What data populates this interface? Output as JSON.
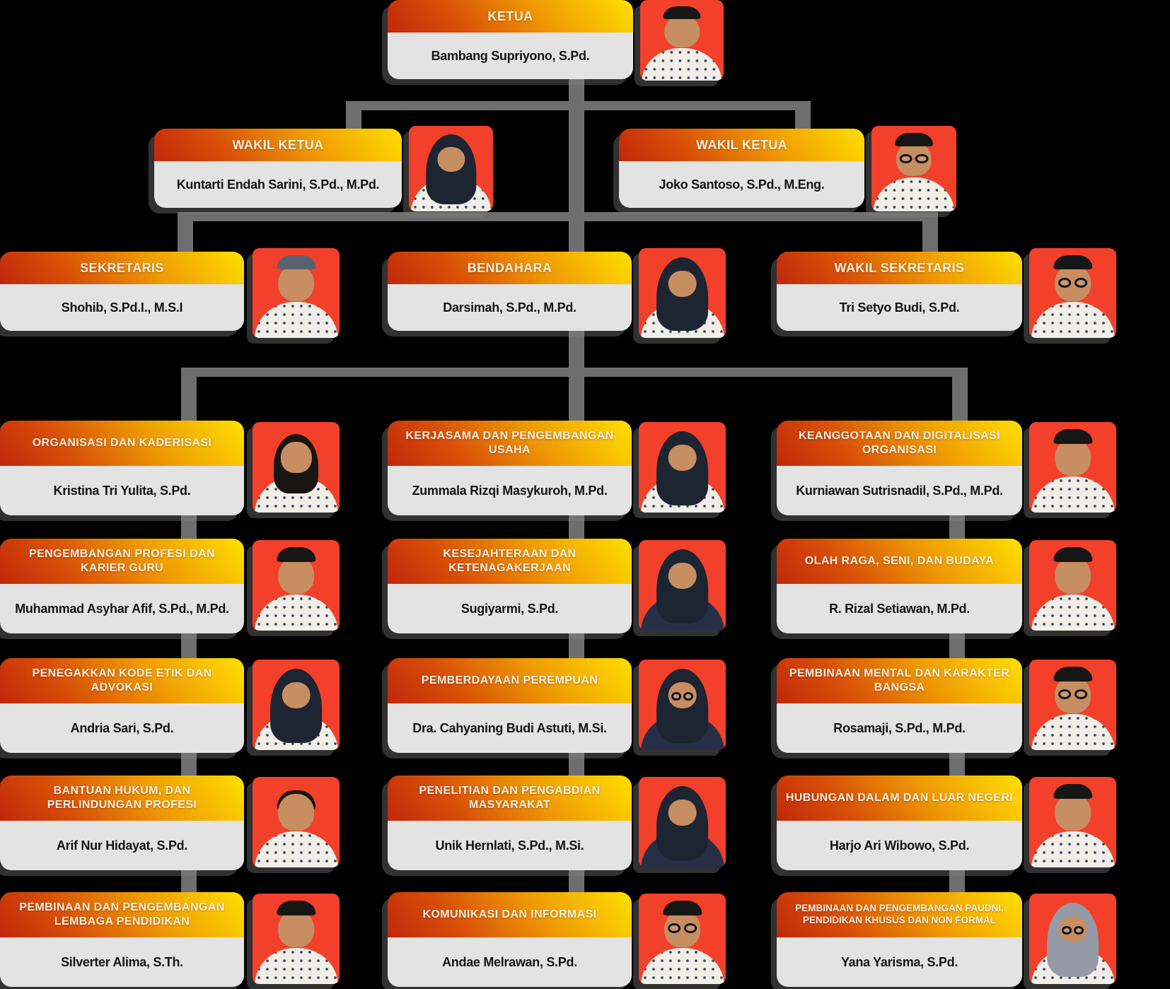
{
  "chart": {
    "ketua": {
      "role": "KETUA",
      "name": "Bambang Supriyono, S.Pd.",
      "avatar": "peci"
    },
    "wakil": [
      {
        "role": "WAKIL KETUA",
        "name": "Kuntarti Endah Sarini, S.Pd., M.Pd.",
        "avatar": "hijab"
      },
      {
        "role": "WAKIL KETUA",
        "name": "Joko Santoso, S.Pd., M.Eng.",
        "avatar": "peci glasses"
      }
    ],
    "officers": [
      {
        "role": "SEKRETARIS",
        "name": "Shohib, S.Pd.I., M.S.I",
        "avatar": "peci-gray"
      },
      {
        "role": "BENDAHARA",
        "name": "Darsimah, S.Pd., M.Pd.",
        "avatar": "hijab"
      },
      {
        "role": "WAKIL SEKRETARIS",
        "name": "Tri Setyo Budi, S.Pd.",
        "avatar": "peci glasses"
      }
    ],
    "columns": [
      [
        {
          "role": "ORGANISASI DAN KADERISASI",
          "name": "Kristina Tri Yulita, S.Pd.",
          "avatar": "hair"
        },
        {
          "role": "PENGEMBANGAN PROFESI DAN KARIER GURU",
          "name": "Muhammad Asyhar Afif, S.Pd., M.Pd.",
          "avatar": "peci"
        },
        {
          "role": "PENEGAKKAN KODE ETIK DAN ADVOKASI",
          "name": "Andria Sari, S.Pd.",
          "avatar": "hijab"
        },
        {
          "role": "BANTUAN HUKUM, DAN PERLINDUNGAN PROFESI",
          "name": "Arif Nur Hidayat, S.Pd.",
          "avatar": "shorthair"
        },
        {
          "role": "PEMBINAAN DAN PENGEMBANGAN LEMBAGA PENDIDIKAN",
          "name": "Silverter Alima, S.Th.",
          "avatar": "peci"
        }
      ],
      [
        {
          "role": "KERJASAMA DAN PENGEMBANGAN USAHA",
          "name": "Zummala Rizqi Masykuroh, M.Pd.",
          "avatar": "hijab"
        },
        {
          "role": "KESEJAHTERAAN DAN KETENAGAKERJAAN",
          "name": "Sugiyarmi, S.Pd.",
          "avatar": "hijab dark"
        },
        {
          "role": "PEMBERDAYAAN PEREMPUAN",
          "name": "Dra. Cahyaning Budi Astuti, M.Si.",
          "avatar": "hijab glasses dark"
        },
        {
          "role": "PENELITIAN DAN PENGABDIAN MASYARAKAT",
          "name": "Unik Hernlati, S.Pd., M.Si.",
          "avatar": "hijab dark"
        },
        {
          "role": "KOMUNIKASI DAN INFORMASI",
          "name": "Andae Melrawan, S.Pd.",
          "avatar": "peci glasses"
        }
      ],
      [
        {
          "role": "KEANGGOTAAN DAN DIGITALISASI ORGANISASI",
          "name": "Kurniawan Sutrisnadil, S.Pd., M.Pd.",
          "avatar": "peci"
        },
        {
          "role": "OLAH RAGA, SENI, DAN BUDAYA",
          "name": "R. Rizal Setiawan, M.Pd.",
          "avatar": "peci"
        },
        {
          "role": "PEMBINAAN MENTAL DAN KARAKTER BANGSA",
          "name": "Rosamaji, S.Pd., M.Pd.",
          "avatar": "peci glasses"
        },
        {
          "role": "HUBUNGAN DALAM DAN LUAR NEGERI",
          "name": "Harjo Ari Wibowo, S.Pd.",
          "avatar": "peci"
        },
        {
          "role": "PEMBINAAN DAN PENGEMBANGAN PAUDNI, PENDIDIKAN KHUSUS DAN NON FORMAL",
          "name": "Yana Yarisma, S.Pd.",
          "avatar": "hijab-gray glasses"
        }
      ]
    ],
    "colors": {
      "background": "#000000",
      "header_gradient_start": "#c1270b",
      "header_gradient_mid": "#ef9b03",
      "header_gradient_end": "#ffdf00",
      "header_text": "#f6efe3",
      "body_bg": "#e3e3e3",
      "body_text": "#141414",
      "photo_bg": "#f2402a",
      "connector": "#6e6e6e"
    }
  }
}
